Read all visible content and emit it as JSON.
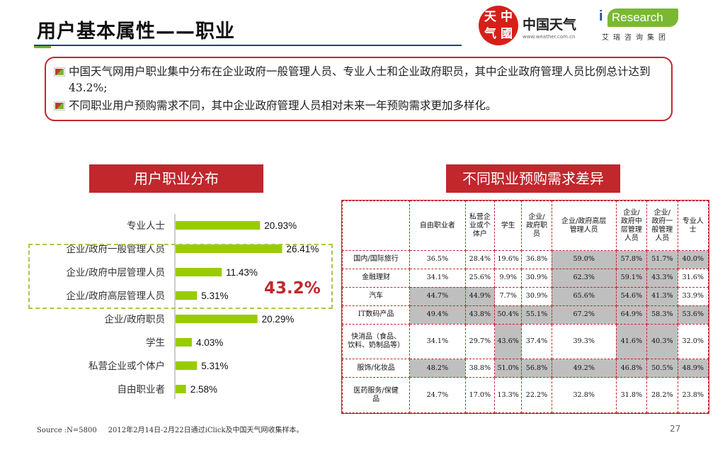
{
  "title": "用户基本属性——职业",
  "logos": {
    "weather_seal": "天 中\n气 國",
    "weather_name": "中国天气",
    "weather_url": "www.weather.com.cn",
    "iresearch_i": "i",
    "iresearch_word": "Research",
    "iresearch_sub": "艾瑞咨询集团"
  },
  "summary": {
    "bullets": [
      "中国天气网用户职业集中分布在企业政府一般管理人员、专业人士和企业政府职员，其中企业政府管理人员比例总计达到43.2%;",
      "不同职业用户预购需求不同，其中企业政府管理人员相对未来一年预购需求更加多样化。"
    ]
  },
  "sections": {
    "left": "用户职业分布",
    "right": "不同职业预购需求差异"
  },
  "highlight_total": "43.2%",
  "chart_data": [
    {
      "type": "bar",
      "orientation": "horizontal",
      "title": "用户职业分布",
      "categories": [
        "专业人士",
        "企业/政府一般管理人员",
        "企业/政府中层管理人员",
        "企业/政府高层管理人员",
        "企业/政府职员",
        "学生",
        "私营企业或个体户",
        "自由职业者"
      ],
      "values": [
        20.93,
        26.41,
        11.43,
        5.31,
        20.29,
        4.03,
        5.31,
        2.58
      ],
      "labels": [
        "20.93%",
        "26.41%",
        "11.43%",
        "5.31%",
        "20.29%",
        "4.03%",
        "5.31%",
        "2.58%"
      ],
      "unit": "%",
      "color": "#99cc00",
      "grid": false
    },
    {
      "type": "table",
      "title": "不同职业预购需求差异",
      "columns": [
        "",
        "自由职业者",
        "私营企业或个体户",
        "学生",
        "企业/政府职员",
        "企业/政府高层管理人员",
        "企业/政府中层管理人员",
        "企业/政府一般管理人员",
        "专业人士"
      ],
      "rows": [
        {
          "label": "国内/国际旅行",
          "values": [
            "36.5%",
            "28.4%",
            "19.6%",
            "36.8%",
            "59.0%",
            "57.8%",
            "51.7%",
            "40.0%"
          ],
          "highlight": [
            0,
            0,
            0,
            0,
            1,
            1,
            1,
            1
          ]
        },
        {
          "label": "金融理财",
          "values": [
            "34.1%",
            "25.6%",
            "9.9%",
            "30.9%",
            "62.3%",
            "59.1%",
            "43.3%",
            "31.6%"
          ],
          "highlight": [
            0,
            0,
            0,
            0,
            1,
            1,
            1,
            0
          ]
        },
        {
          "label": "汽车",
          "values": [
            "44.7%",
            "44.9%",
            "7.7%",
            "30.9%",
            "65.6%",
            "54.6%",
            "41.3%",
            "33.9%"
          ],
          "highlight": [
            1,
            1,
            0,
            0,
            1,
            1,
            1,
            0
          ]
        },
        {
          "label": "IT数码产品",
          "values": [
            "49.4%",
            "43.8%",
            "50.4%",
            "55.1%",
            "67.2%",
            "64.9%",
            "58.3%",
            "53.6%"
          ],
          "highlight": [
            1,
            1,
            1,
            1,
            1,
            1,
            1,
            1
          ]
        },
        {
          "label": "快消品（食品、饮料、奶制品等）",
          "values": [
            "34.1%",
            "29.7%",
            "43.6%",
            "37.4%",
            "39.3%",
            "41.6%",
            "40.3%",
            "32.0%"
          ],
          "highlight": [
            0,
            0,
            1,
            0,
            0,
            1,
            1,
            0
          ]
        },
        {
          "label": "服饰/化妆品",
          "values": [
            "48.2%",
            "38.8%",
            "51.0%",
            "56.8%",
            "49.2%",
            "46.8%",
            "50.5%",
            "48.9%"
          ],
          "highlight": [
            1,
            0,
            1,
            1,
            1,
            1,
            1,
            1
          ]
        },
        {
          "label": "医药服务/保健品",
          "values": [
            "24.7%",
            "17.0%",
            "13.3%",
            "22.2%",
            "32.8%",
            "31.8%",
            "28.2%",
            "23.8%"
          ],
          "highlight": [
            0,
            0,
            0,
            0,
            0,
            0,
            0,
            0
          ]
        }
      ],
      "highlight_color": "#bfbfbf"
    }
  ],
  "table_headers": [
    "",
    "自由职业者",
    "私营企\n业或个\n体户",
    "学生",
    "企业/\n政府职\n员",
    "企业/政府高层\n管理人员",
    "企业/\n政府中\n层管理\n人员",
    "企业/\n政府一\n般管理\n人员",
    "专业人\n士"
  ],
  "table_row_labels": [
    "国内/国际旅行",
    "金融理财",
    "汽车",
    "IT数码产品",
    "快消品（食品、\n饮料、奶制品等）",
    "服饰/化妆品",
    "医药服务/保健\n品"
  ],
  "footer": {
    "source": "Source :N=5800     2012年2月14日-2月22日通过iClick及中国天气网收集样本。",
    "page": "27"
  }
}
